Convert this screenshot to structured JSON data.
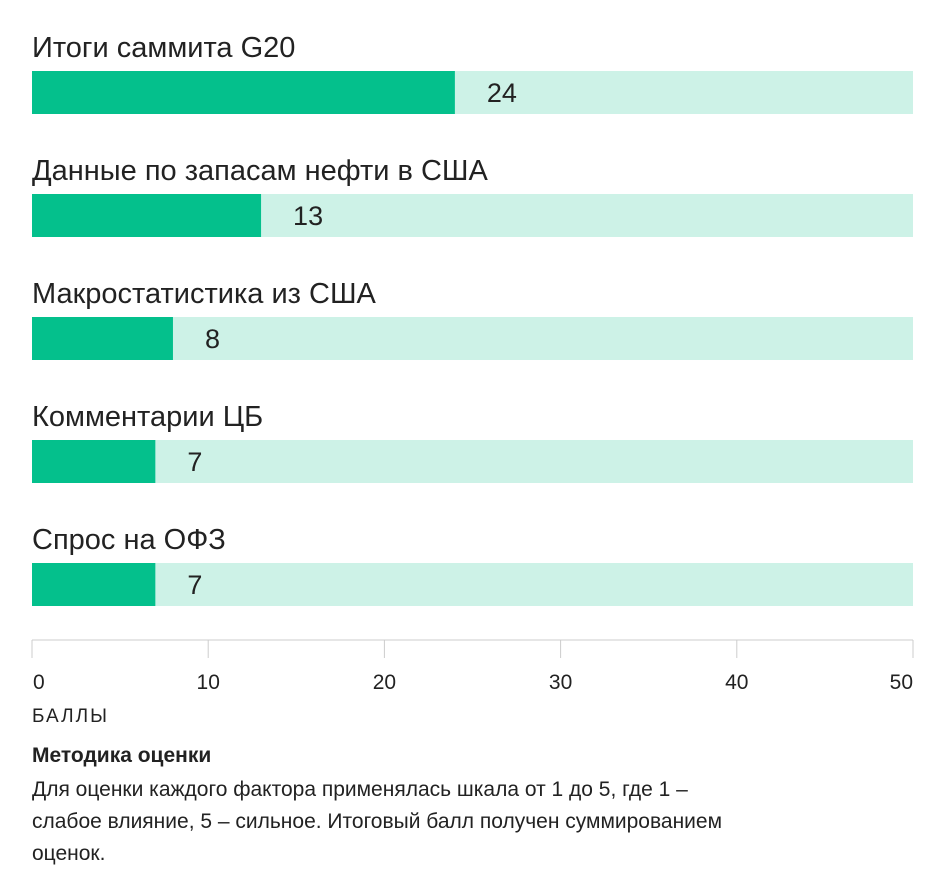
{
  "chart_data": {
    "type": "bar",
    "orientation": "horizontal",
    "categories": [
      "Итоги саммита G20",
      "Данные по запасам нефти в США",
      "Макростатистика из США",
      "Комментарии ЦБ",
      "Спрос на ОФЗ"
    ],
    "values": [
      24,
      13,
      8,
      7,
      7
    ],
    "value_labels": [
      "24",
      "13",
      "8",
      "7",
      "7"
    ],
    "xlim": [
      0,
      50
    ],
    "xticks": [
      0,
      10,
      20,
      30,
      40,
      50
    ],
    "xtick_labels": [
      "0",
      "10",
      "20",
      "30",
      "40",
      "50"
    ],
    "xlabel": "БАЛЛЫ",
    "ylabel": "",
    "title": "",
    "grid": false,
    "colors": {
      "bar": "#04c08c",
      "track": "#cdf2e7",
      "axis": "#cccccc"
    }
  },
  "methodology": {
    "title": "Методика оценки",
    "text": "Для оценки каждого фактора применялась шкала от 1 до 5, где 1 – слабое влияние, 5 – сильное. Итоговый балл получен суммированием оценок."
  }
}
